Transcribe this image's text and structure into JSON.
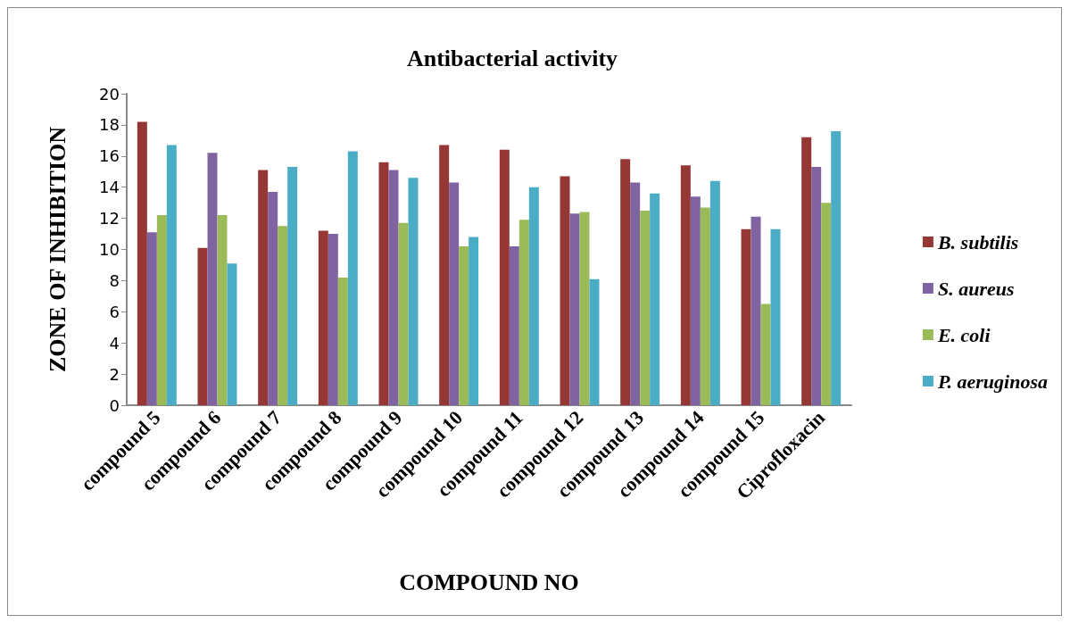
{
  "chart_data": {
    "type": "bar",
    "title": "Antibacterial activity",
    "xlabel": "COMPOUND NO",
    "ylabel": "ZONE OF INHIBITION",
    "categories": [
      "compound 5",
      "compound 6",
      "compound 7",
      "compound 8",
      "compound 9",
      "compound 10",
      "compound 11",
      "compound 12",
      "compound 13",
      "compound 14",
      "compound 15",
      "Ciprofloxacin"
    ],
    "series": [
      {
        "name": "B. subtilis",
        "color": "#953735",
        "values": [
          18.2,
          10.1,
          15.1,
          11.2,
          15.6,
          16.7,
          16.4,
          14.7,
          15.8,
          15.4,
          11.3,
          17.2
        ]
      },
      {
        "name": "S. aureus",
        "color": "#8064a2",
        "values": [
          11.1,
          16.2,
          13.7,
          11.0,
          15.1,
          14.3,
          10.2,
          12.3,
          14.3,
          13.4,
          12.1,
          15.3
        ]
      },
      {
        "name": "E. coli",
        "color": "#9bbb59",
        "values": [
          12.2,
          12.2,
          11.5,
          8.2,
          11.7,
          10.2,
          11.9,
          12.4,
          12.5,
          12.7,
          6.5,
          13.0
        ]
      },
      {
        "name": "P. aeruginosa",
        "color": "#4bacc6",
        "values": [
          16.7,
          9.1,
          15.3,
          16.3,
          14.6,
          10.8,
          14.0,
          8.1,
          13.6,
          14.4,
          11.3,
          17.6
        ]
      }
    ],
    "ylim": [
      0,
      20
    ],
    "yticks": [
      0,
      2,
      4,
      6,
      8,
      10,
      12,
      14,
      16,
      18,
      20
    ],
    "grid": false,
    "legend": "right"
  }
}
